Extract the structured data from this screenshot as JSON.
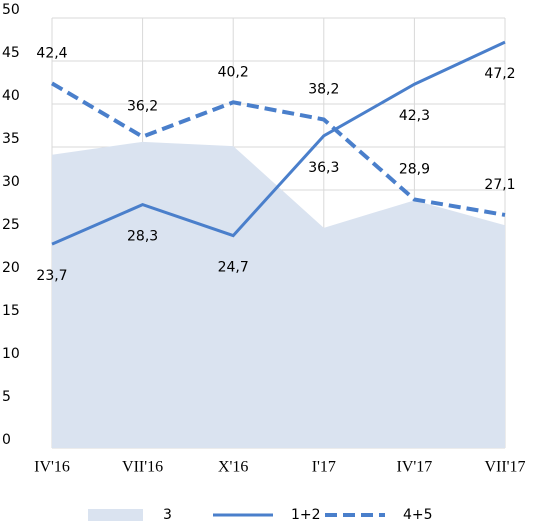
{
  "chart_data": {
    "type": "line",
    "categories": [
      "IV'16",
      "VII'16",
      "X'16",
      "I'17",
      "IV'17",
      "VII'17"
    ],
    "series": [
      {
        "name": "3",
        "type": "area",
        "color": "#dae3f0",
        "values": [
          34.1,
          35.6,
          35.1,
          25.6,
          28.8,
          25.9
        ]
      },
      {
        "name": "1+2",
        "type": "line",
        "color": "#4a7fcb",
        "dashed": false,
        "label_position": "below",
        "values": [
          23.7,
          28.3,
          24.7,
          36.3,
          42.3,
          47.2
        ],
        "value_labels": [
          "23,7",
          "28,3",
          "24,7",
          "36,3",
          "42,3",
          "47,2"
        ]
      },
      {
        "name": "4+5",
        "type": "line",
        "color": "#4a7fcb",
        "dashed": true,
        "label_position": "above",
        "values": [
          42.4,
          36.2,
          40.2,
          38.2,
          28.9,
          27.1
        ],
        "value_labels": [
          "42,4",
          "36,2",
          "40,2",
          "38,2",
          "28,9",
          "27,1"
        ]
      }
    ],
    "ylim": [
      0,
      50
    ],
    "yticks": [
      0,
      5,
      10,
      15,
      20,
      25,
      30,
      35,
      40,
      45,
      50
    ],
    "grid": true,
    "legend": "bottom"
  }
}
